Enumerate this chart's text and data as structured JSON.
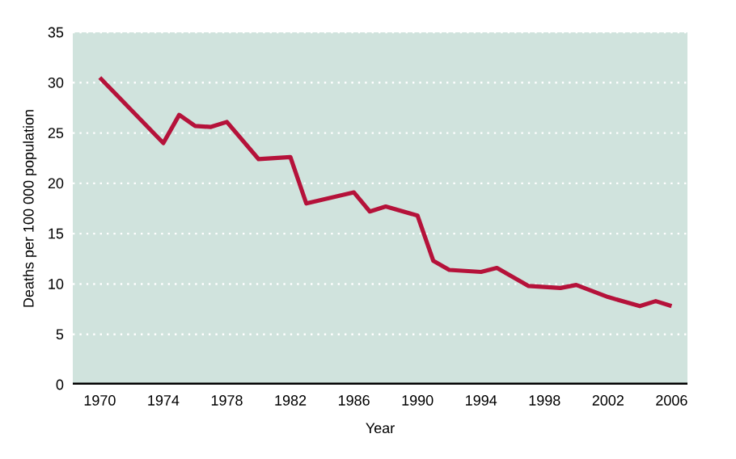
{
  "chart_data": {
    "type": "line",
    "xlabel": "Year",
    "ylabel": "Deaths per 100 000 population",
    "x": [
      1970,
      1974,
      1975,
      1976,
      1977,
      1978,
      1980,
      1982,
      1983,
      1986,
      1987,
      1988,
      1990,
      1991,
      1992,
      1994,
      1995,
      1997,
      1999,
      2000,
      2002,
      2004,
      2005,
      2006
    ],
    "series": [
      {
        "color": "#b5123a",
        "values": [
          30.5,
          24,
          26.8,
          25.7,
          25.6,
          26.1,
          22.4,
          22.6,
          18,
          19.1,
          17.2,
          17.7,
          16.8,
          12.3,
          11.4,
          11.2,
          11.6,
          9.8,
          9.6,
          9.9,
          8.7,
          7.8,
          8.3,
          7.8
        ]
      }
    ],
    "xlim": [
      1968.3,
      2007
    ],
    "ylim": [
      0,
      35
    ],
    "xticks": [
      1970,
      1974,
      1978,
      1982,
      1986,
      1990,
      1994,
      1998,
      2002,
      2006
    ],
    "yticks": [
      0,
      5,
      10,
      15,
      20,
      25,
      30,
      35
    ],
    "grid": "y",
    "marker": "none",
    "line_style": "solid"
  }
}
